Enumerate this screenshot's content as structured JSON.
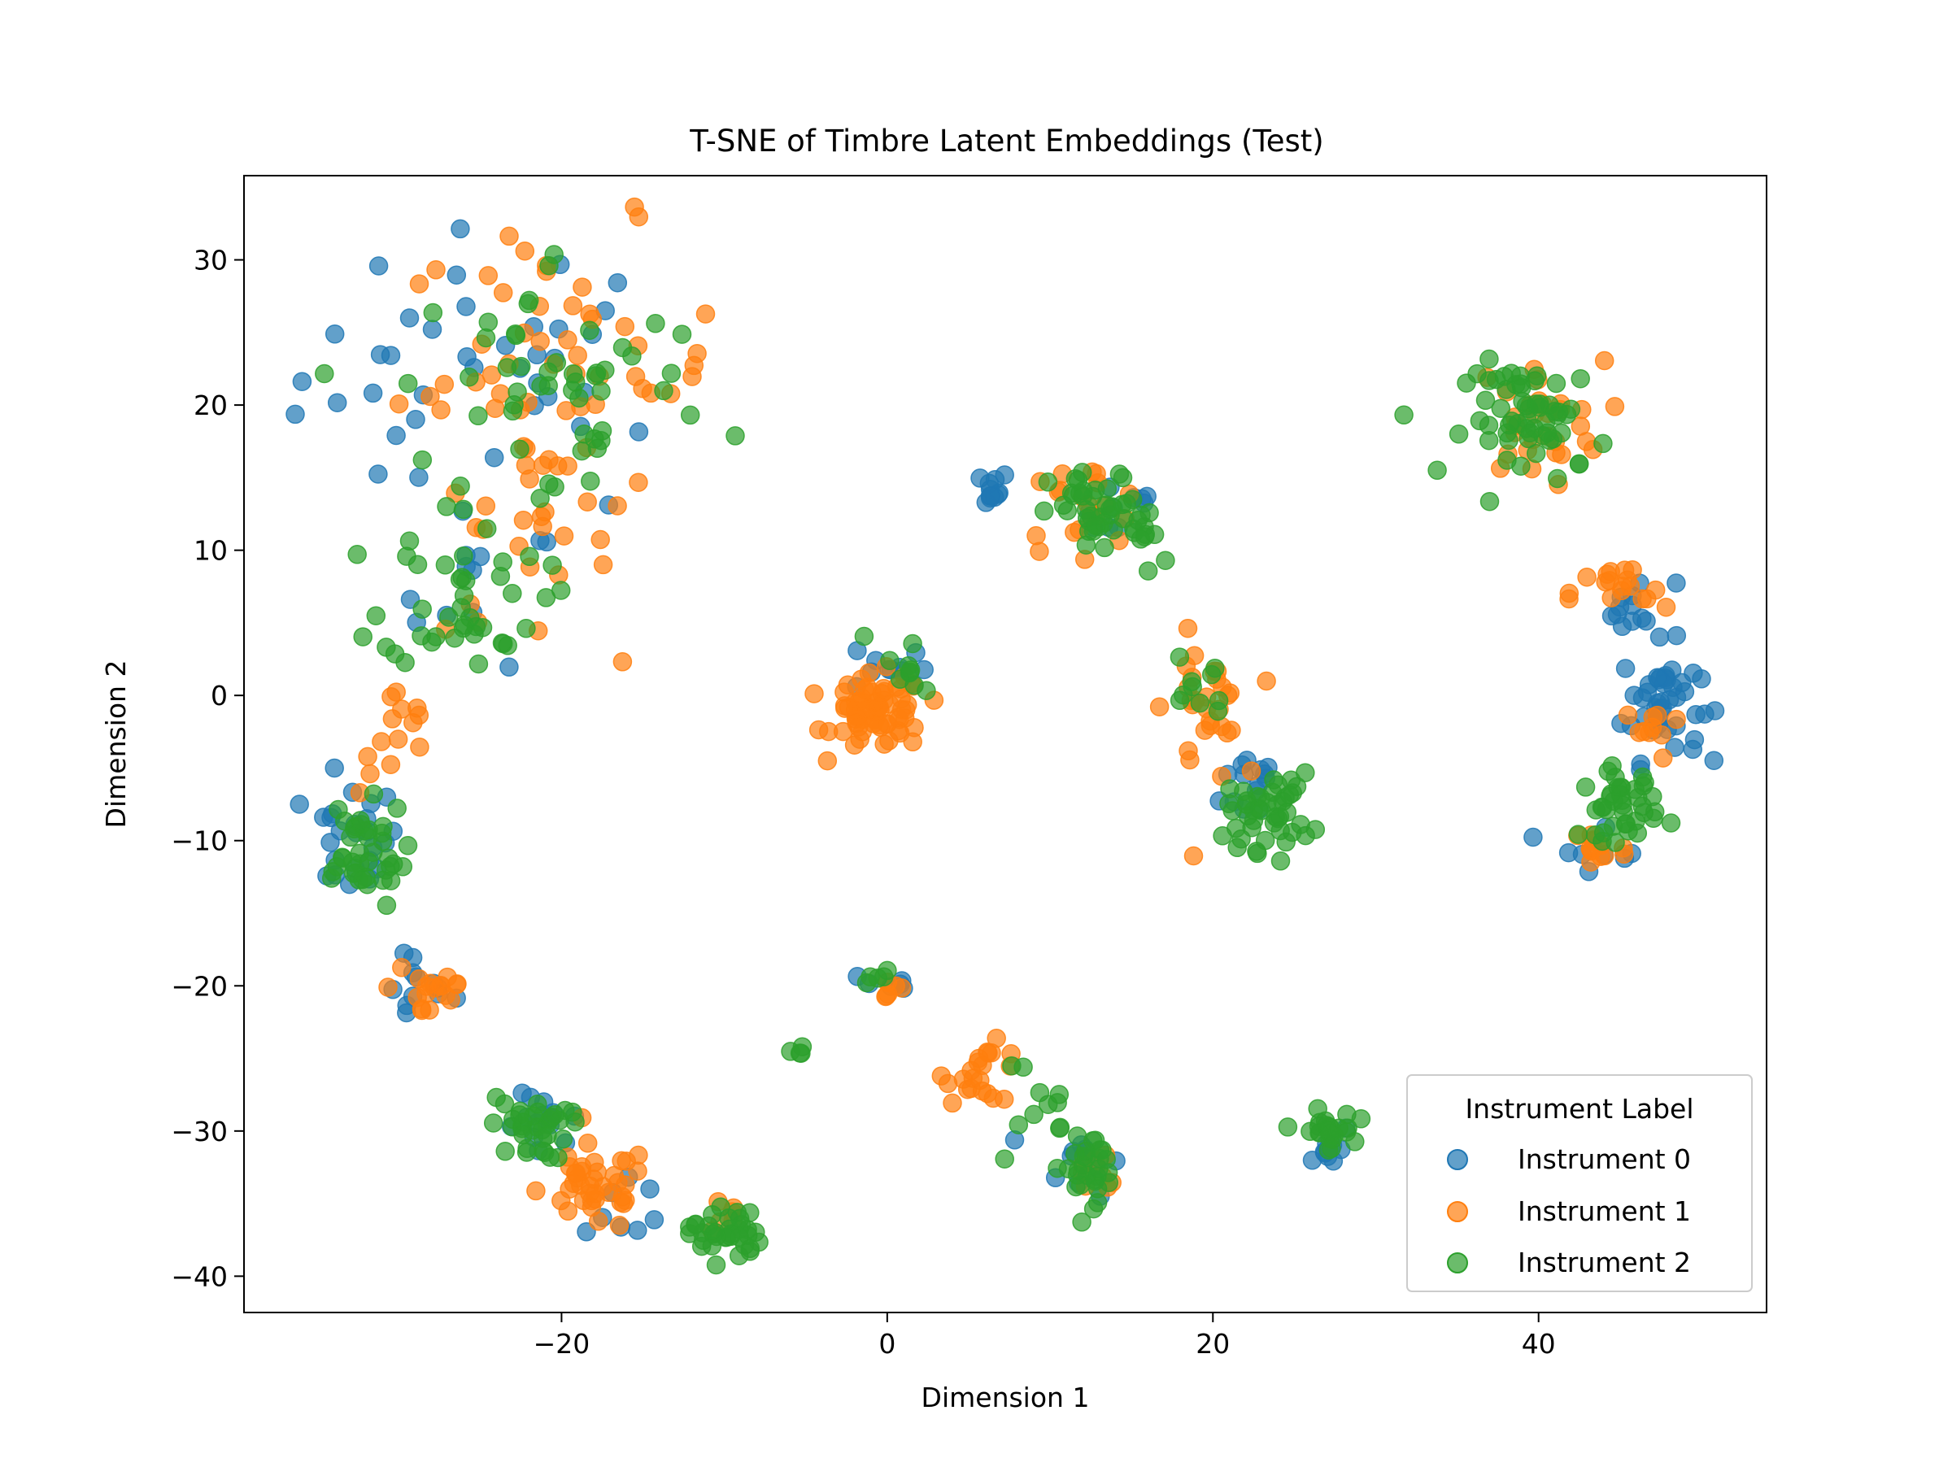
{
  "chart_data": {
    "type": "scatter",
    "title": "T-SNE of Timbre Latent Embeddings (Test)",
    "xlabel": "Dimension 1",
    "ylabel": "Dimension 2",
    "xlim": [
      -39.5,
      54
    ],
    "ylim": [
      -42.5,
      35.8
    ],
    "xticks": [
      -20,
      0,
      20,
      40
    ],
    "yticks": [
      -40,
      -30,
      -20,
      -10,
      0,
      10,
      20,
      30
    ],
    "grid": false,
    "legend": {
      "title": "Instrument Label",
      "placement": "bottom-right"
    },
    "series": [
      {
        "name": "Instrument 0",
        "color": "#1f77b4",
        "clusters": [
          {
            "cx": -24,
            "cy": 22,
            "sx": 6,
            "sy": 5,
            "n": 40
          },
          {
            "cx": -25,
            "cy": 7,
            "sx": 2.5,
            "sy": 2.5,
            "n": 10
          },
          {
            "cx": -33,
            "cy": -10,
            "sx": 1.5,
            "sy": 2,
            "n": 25
          },
          {
            "cx": -29,
            "cy": -20,
            "sx": 1.2,
            "sy": 1.5,
            "n": 12
          },
          {
            "cx": -21,
            "cy": -30,
            "sx": 1.2,
            "sy": 1.2,
            "n": 14
          },
          {
            "cx": -16,
            "cy": -35,
            "sx": 1.3,
            "sy": 1.3,
            "n": 8
          },
          {
            "cx": 0,
            "cy": 2,
            "sx": 1.2,
            "sy": 1,
            "n": 10
          },
          {
            "cx": 0,
            "cy": -20,
            "sx": 0.8,
            "sy": 0.6,
            "n": 6
          },
          {
            "cx": 6,
            "cy": 14.3,
            "sx": 0.8,
            "sy": 0.6,
            "n": 12
          },
          {
            "cx": 14,
            "cy": 13,
            "sx": 1.5,
            "sy": 1.3,
            "n": 10
          },
          {
            "cx": 23,
            "cy": -6,
            "sx": 1.2,
            "sy": 1.5,
            "n": 14
          },
          {
            "cx": 27,
            "cy": -31,
            "sx": 0.8,
            "sy": 0.8,
            "n": 10
          },
          {
            "cx": 12,
            "cy": -32,
            "sx": 1.2,
            "sy": 1.2,
            "n": 12
          },
          {
            "cx": 47.5,
            "cy": -0.5,
            "sx": 1.2,
            "sy": 2,
            "n": 45
          },
          {
            "cx": 46,
            "cy": 6,
            "sx": 1.2,
            "sy": 1,
            "n": 12
          },
          {
            "cx": 44,
            "cy": -10,
            "sx": 1.5,
            "sy": 1,
            "n": 8
          }
        ]
      },
      {
        "name": "Instrument 1",
        "color": "#ff7f0e",
        "clusters": [
          {
            "cx": -20,
            "cy": 22,
            "sx": 5,
            "sy": 5,
            "n": 60
          },
          {
            "cx": -23,
            "cy": 10,
            "sx": 3,
            "sy": 3,
            "n": 18
          },
          {
            "cx": -30,
            "cy": -3,
            "sx": 1.2,
            "sy": 2,
            "n": 14
          },
          {
            "cx": -28,
            "cy": -20,
            "sx": 1.3,
            "sy": 1.5,
            "n": 18
          },
          {
            "cx": -18,
            "cy": -34,
            "sx": 1.7,
            "sy": 1.5,
            "n": 40
          },
          {
            "cx": -10,
            "cy": -36,
            "sx": 0.8,
            "sy": 0.6,
            "n": 6
          },
          {
            "cx": -0.5,
            "cy": -1.2,
            "sx": 1.4,
            "sy": 1.3,
            "n": 70
          },
          {
            "cx": 0,
            "cy": -20,
            "sx": 0.7,
            "sy": 0.5,
            "n": 6
          },
          {
            "cx": 6,
            "cy": -26,
            "sx": 1.2,
            "sy": 1,
            "n": 22
          },
          {
            "cx": 12,
            "cy": 13,
            "sx": 2,
            "sy": 1.5,
            "n": 20
          },
          {
            "cx": 19.5,
            "cy": -1,
            "sx": 1.2,
            "sy": 2.5,
            "n": 30
          },
          {
            "cx": 40,
            "cy": 19,
            "sx": 2,
            "sy": 2,
            "n": 30
          },
          {
            "cx": 45,
            "cy": 7,
            "sx": 1.5,
            "sy": 1,
            "n": 18
          },
          {
            "cx": 47,
            "cy": -2.5,
            "sx": 0.9,
            "sy": 1,
            "n": 10
          },
          {
            "cx": 43.5,
            "cy": -10.5,
            "sx": 1,
            "sy": 1,
            "n": 14
          },
          {
            "cx": 13,
            "cy": -33,
            "sx": 1,
            "sy": 1,
            "n": 8
          }
        ]
      },
      {
        "name": "Instrument 2",
        "color": "#2ca02c",
        "clusters": [
          {
            "cx": -20,
            "cy": 21,
            "sx": 5,
            "sy": 5,
            "n": 55
          },
          {
            "cx": -26,
            "cy": 7,
            "sx": 2.5,
            "sy": 2.5,
            "n": 40
          },
          {
            "cx": -32.5,
            "cy": -11,
            "sx": 1.5,
            "sy": 1.8,
            "n": 40
          },
          {
            "cx": -22,
            "cy": -29.8,
            "sx": 1.2,
            "sy": 1.1,
            "n": 35
          },
          {
            "cx": -10,
            "cy": -37,
            "sx": 1.1,
            "sy": 1,
            "n": 35
          },
          {
            "cx": -5.5,
            "cy": -24.6,
            "sx": 0.2,
            "sy": 0.2,
            "n": 4
          },
          {
            "cx": 1,
            "cy": 2,
            "sx": 1.2,
            "sy": 1.5,
            "n": 10
          },
          {
            "cx": -0.5,
            "cy": -19.8,
            "sx": 0.6,
            "sy": 0.4,
            "n": 5
          },
          {
            "cx": 13,
            "cy": 12.5,
            "sx": 1.5,
            "sy": 1.5,
            "n": 40
          },
          {
            "cx": 16,
            "cy": 11,
            "sx": 1,
            "sy": 1.5,
            "n": 10
          },
          {
            "cx": 19,
            "cy": 1,
            "sx": 1,
            "sy": 1.5,
            "n": 10
          },
          {
            "cx": 23.5,
            "cy": -8,
            "sx": 1.3,
            "sy": 1.3,
            "n": 45
          },
          {
            "cx": 27,
            "cy": -30,
            "sx": 0.8,
            "sy": 0.7,
            "n": 25
          },
          {
            "cx": 12.5,
            "cy": -32.5,
            "sx": 1.2,
            "sy": 1.2,
            "n": 30
          },
          {
            "cx": 8,
            "cy": -28,
            "sx": 1.5,
            "sy": 1.5,
            "n": 10
          },
          {
            "cx": 40,
            "cy": 19,
            "sx": 2.2,
            "sy": 2,
            "n": 60
          },
          {
            "cx": 45,
            "cy": -7.5,
            "sx": 1.2,
            "sy": 1.2,
            "n": 40
          }
        ]
      }
    ]
  }
}
